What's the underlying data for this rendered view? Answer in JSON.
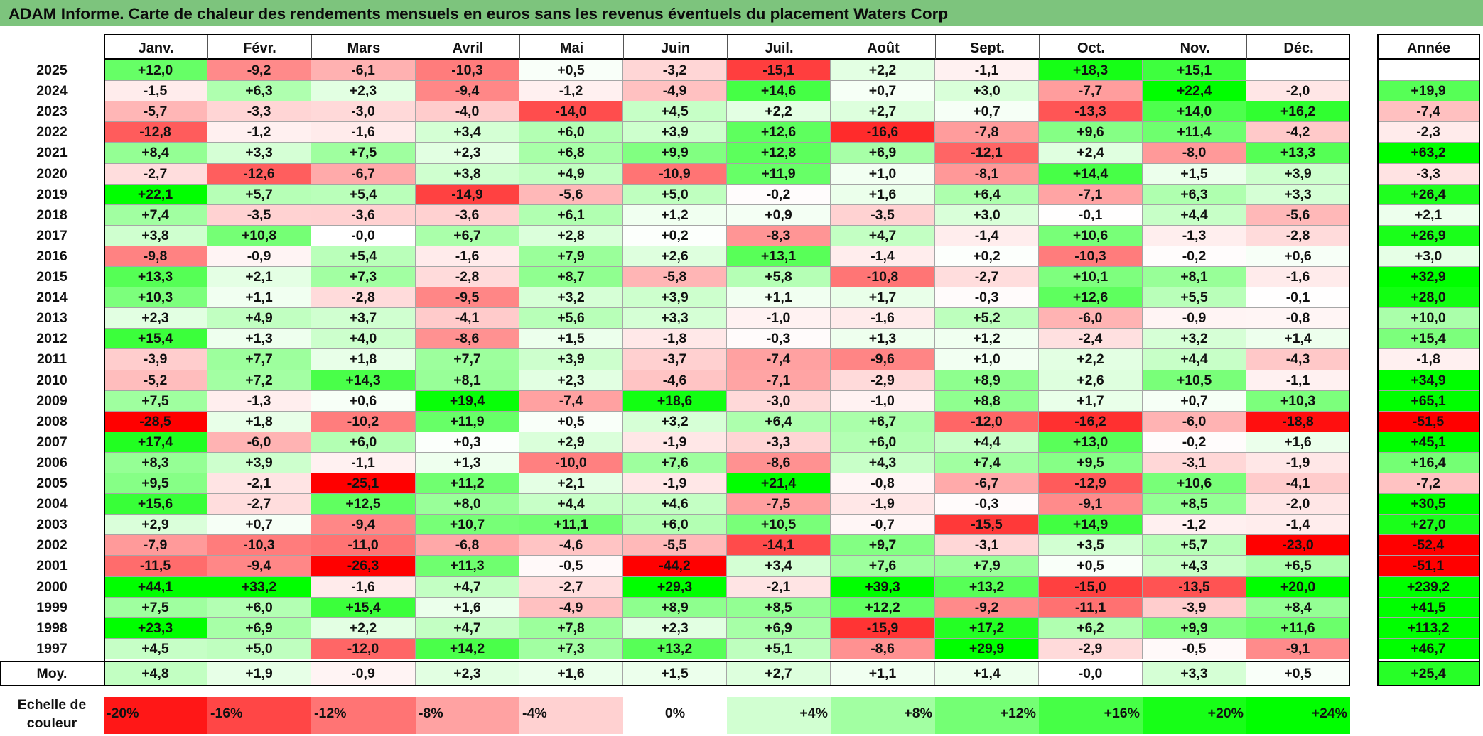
{
  "title": "ADAM Informe. Carte de chaleur des rendements mensuels en euros sans les revenus éventuels du placement Waters Corp",
  "chart_data": {
    "type": "heatmap",
    "title": "ADAM Informe. Carte de chaleur des rendements mensuels en euros sans les revenus éventuels du placement Waters Corp",
    "months": [
      "Janv.",
      "Févr.",
      "Mars",
      "Avril",
      "Mai",
      "Juin",
      "Juil.",
      "Août",
      "Sept.",
      "Oct.",
      "Nov.",
      "Déc."
    ],
    "year_header": "Année",
    "rows": [
      {
        "year": "2025",
        "values": [
          "+12,0",
          "-9,2",
          "-6,1",
          "-10,3",
          "+0,5",
          "-3,2",
          "-15,1",
          "+2,2",
          "-1,1",
          "+18,3",
          "+15,1",
          ""
        ],
        "annual": ""
      },
      {
        "year": "2024",
        "values": [
          "-1,5",
          "+6,3",
          "+2,3",
          "-9,4",
          "-1,2",
          "-4,9",
          "+14,6",
          "+0,7",
          "+3,0",
          "-7,7",
          "+22,4",
          "-2,0"
        ],
        "annual": "+19,9"
      },
      {
        "year": "2023",
        "values": [
          "-5,7",
          "-3,3",
          "-3,0",
          "-4,0",
          "-14,0",
          "+4,5",
          "+2,2",
          "+2,7",
          "+0,7",
          "-13,3",
          "+14,0",
          "+16,2"
        ],
        "annual": "-7,4"
      },
      {
        "year": "2022",
        "values": [
          "-12,8",
          "-1,2",
          "-1,6",
          "+3,4",
          "+6,0",
          "+3,9",
          "+12,6",
          "-16,6",
          "-7,8",
          "+9,6",
          "+11,4",
          "-4,2"
        ],
        "annual": "-2,3"
      },
      {
        "year": "2021",
        "values": [
          "+8,4",
          "+3,3",
          "+7,5",
          "+2,3",
          "+6,8",
          "+9,9",
          "+12,8",
          "+6,9",
          "-12,1",
          "+2,4",
          "-8,0",
          "+13,3"
        ],
        "annual": "+63,2"
      },
      {
        "year": "2020",
        "values": [
          "-2,7",
          "-12,6",
          "-6,7",
          "+3,8",
          "+4,9",
          "-10,9",
          "+11,9",
          "+1,0",
          "-8,1",
          "+14,4",
          "+1,5",
          "+3,9"
        ],
        "annual": "-3,3"
      },
      {
        "year": "2019",
        "values": [
          "+22,1",
          "+5,7",
          "+5,4",
          "-14,9",
          "-5,6",
          "+5,0",
          "-0,2",
          "+1,6",
          "+6,4",
          "-7,1",
          "+6,3",
          "+3,3"
        ],
        "annual": "+26,4"
      },
      {
        "year": "2018",
        "values": [
          "+7,4",
          "-3,5",
          "-3,6",
          "-3,6",
          "+6,1",
          "+1,2",
          "+0,9",
          "-3,5",
          "+3,0",
          "-0,1",
          "+4,4",
          "-5,6"
        ],
        "annual": "+2,1"
      },
      {
        "year": "2017",
        "values": [
          "+3,8",
          "+10,8",
          "-0,0",
          "+6,7",
          "+2,8",
          "+0,2",
          "-8,3",
          "+4,7",
          "-1,4",
          "+10,6",
          "-1,3",
          "-2,8"
        ],
        "annual": "+26,9"
      },
      {
        "year": "2016",
        "values": [
          "-9,8",
          "-0,9",
          "+5,4",
          "-1,6",
          "+7,9",
          "+2,6",
          "+13,1",
          "-1,4",
          "+0,2",
          "-10,3",
          "-0,2",
          "+0,6"
        ],
        "annual": "+3,0"
      },
      {
        "year": "2015",
        "values": [
          "+13,3",
          "+2,1",
          "+7,3",
          "-2,8",
          "+8,7",
          "-5,8",
          "+5,8",
          "-10,8",
          "-2,7",
          "+10,1",
          "+8,1",
          "-1,6"
        ],
        "annual": "+32,9"
      },
      {
        "year": "2014",
        "values": [
          "+10,3",
          "+1,1",
          "-2,8",
          "-9,5",
          "+3,2",
          "+3,9",
          "+1,1",
          "+1,7",
          "-0,3",
          "+12,6",
          "+5,5",
          "-0,1"
        ],
        "annual": "+28,0"
      },
      {
        "year": "2013",
        "values": [
          "+2,3",
          "+4,9",
          "+3,7",
          "-4,1",
          "+5,6",
          "+3,3",
          "-1,0",
          "-1,6",
          "+5,2",
          "-6,0",
          "-0,9",
          "-0,8"
        ],
        "annual": "+10,0"
      },
      {
        "year": "2012",
        "values": [
          "+15,4",
          "+1,3",
          "+4,0",
          "-8,6",
          "+1,5",
          "-1,8",
          "-0,3",
          "+1,3",
          "+1,2",
          "-2,4",
          "+3,2",
          "+1,4"
        ],
        "annual": "+15,4"
      },
      {
        "year": "2011",
        "values": [
          "-3,9",
          "+7,7",
          "+1,8",
          "+7,7",
          "+3,9",
          "-3,7",
          "-7,4",
          "-9,6",
          "+1,0",
          "+2,2",
          "+4,4",
          "-4,3"
        ],
        "annual": "-1,8"
      },
      {
        "year": "2010",
        "values": [
          "-5,2",
          "+7,2",
          "+14,3",
          "+8,1",
          "+2,3",
          "-4,6",
          "-7,1",
          "-2,9",
          "+8,9",
          "+2,6",
          "+10,5",
          "-1,1"
        ],
        "annual": "+34,9"
      },
      {
        "year": "2009",
        "values": [
          "+7,5",
          "-1,3",
          "+0,6",
          "+19,4",
          "-7,4",
          "+18,6",
          "-3,0",
          "-1,0",
          "+8,8",
          "+1,7",
          "+0,7",
          "+10,3"
        ],
        "annual": "+65,1"
      },
      {
        "year": "2008",
        "values": [
          "-28,5",
          "+1,8",
          "-10,2",
          "+11,9",
          "+0,5",
          "+3,2",
          "+6,4",
          "+6,7",
          "-12,0",
          "-16,2",
          "-6,0",
          "-18,8"
        ],
        "annual": "-51,5"
      },
      {
        "year": "2007",
        "values": [
          "+17,4",
          "-6,0",
          "+6,0",
          "+0,3",
          "+2,9",
          "-1,9",
          "-3,3",
          "+6,0",
          "+4,4",
          "+13,0",
          "-0,2",
          "+1,6"
        ],
        "annual": "+45,1"
      },
      {
        "year": "2006",
        "values": [
          "+8,3",
          "+3,9",
          "-1,1",
          "+1,3",
          "-10,0",
          "+7,6",
          "-8,6",
          "+4,3",
          "+7,4",
          "+9,5",
          "-3,1",
          "-1,9"
        ],
        "annual": "+16,4"
      },
      {
        "year": "2005",
        "values": [
          "+9,5",
          "-2,1",
          "-25,1",
          "+11,2",
          "+2,1",
          "-1,9",
          "+21,4",
          "-0,8",
          "-6,7",
          "-12,9",
          "+10,6",
          "-4,1"
        ],
        "annual": "-7,2"
      },
      {
        "year": "2004",
        "values": [
          "+15,6",
          "-2,7",
          "+12,5",
          "+8,0",
          "+4,4",
          "+4,6",
          "-7,5",
          "-1,9",
          "-0,3",
          "-9,1",
          "+8,5",
          "-2,0"
        ],
        "annual": "+30,5"
      },
      {
        "year": "2003",
        "values": [
          "+2,9",
          "+0,7",
          "-9,4",
          "+10,7",
          "+11,1",
          "+6,0",
          "+10,5",
          "-0,7",
          "-15,5",
          "+14,9",
          "-1,2",
          "-1,4"
        ],
        "annual": "+27,0"
      },
      {
        "year": "2002",
        "values": [
          "-7,9",
          "-10,3",
          "-11,0",
          "-6,8",
          "-4,6",
          "-5,5",
          "-14,1",
          "+9,7",
          "-3,1",
          "+3,5",
          "+5,7",
          "-23,0"
        ],
        "annual": "-52,4"
      },
      {
        "year": "2001",
        "values": [
          "-11,5",
          "-9,4",
          "-26,3",
          "+11,3",
          "-0,5",
          "-44,2",
          "+3,4",
          "+7,6",
          "+7,9",
          "+0,5",
          "+4,3",
          "+6,5"
        ],
        "annual": "-51,1"
      },
      {
        "year": "2000",
        "values": [
          "+44,1",
          "+33,2",
          "-1,6",
          "+4,7",
          "-2,7",
          "+29,3",
          "-2,1",
          "+39,3",
          "+13,2",
          "-15,0",
          "-13,5",
          "+20,0"
        ],
        "annual": "+239,2"
      },
      {
        "year": "1999",
        "values": [
          "+7,5",
          "+6,0",
          "+15,4",
          "+1,6",
          "-4,9",
          "+8,9",
          "+8,5",
          "+12,2",
          "-9,2",
          "-11,1",
          "-3,9",
          "+8,4"
        ],
        "annual": "+41,5"
      },
      {
        "year": "1998",
        "values": [
          "+23,3",
          "+6,9",
          "+2,2",
          "+4,7",
          "+7,8",
          "+2,3",
          "+6,9",
          "-15,9",
          "+17,2",
          "+6,2",
          "+9,9",
          "+11,6"
        ],
        "annual": "+113,2"
      },
      {
        "year": "1997",
        "values": [
          "+4,5",
          "+5,0",
          "-12,0",
          "+14,2",
          "+7,3",
          "+13,2",
          "+5,1",
          "-8,6",
          "+29,9",
          "-2,9",
          "-0,5",
          "-9,1"
        ],
        "annual": "+46,7"
      }
    ],
    "average": {
      "label": "Moy.",
      "values": [
        "+4,8",
        "+1,9",
        "-0,9",
        "+2,3",
        "+1,6",
        "+1,5",
        "+2,7",
        "+1,1",
        "+1,4",
        "-0,0",
        "+3,3",
        "+0,5"
      ],
      "annual": "+25,4"
    },
    "scale": {
      "label_line1": "Echelle de",
      "label_line2": "couleur",
      "stops": [
        "-20%",
        "-16%",
        "-12%",
        "-8%",
        "-4%",
        "0%",
        "+4%",
        "+8%",
        "+12%",
        "+16%",
        "+20%",
        "+24%"
      ]
    },
    "colors": {
      "negative_max": "#ff0000",
      "neutral": "#ffffff",
      "positive_max": "#00ff00",
      "title_bar": "#7dc47d"
    }
  }
}
